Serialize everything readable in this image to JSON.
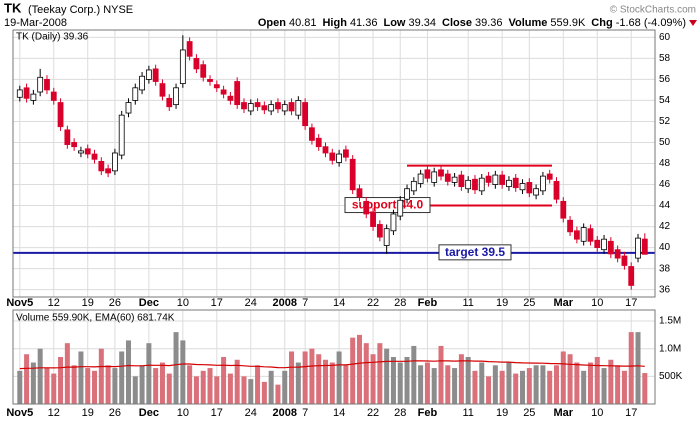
{
  "header": {
    "symbol": "TK",
    "name": "(Teekay Corp.) NYSE",
    "date": "19-Mar-2008",
    "source": "© StockCharts.com",
    "quote": [
      {
        "label": "Open",
        "value": "40.81"
      },
      {
        "label": "High",
        "value": "41.36"
      },
      {
        "label": "Low",
        "value": "39.34"
      },
      {
        "label": "Close",
        "value": "39.36"
      },
      {
        "label": "Volume",
        "value": "559.9K"
      },
      {
        "label": "Chg",
        "value": "-1.68 (-4.09%)"
      }
    ]
  },
  "chart_data": [
    {
      "type": "candlestick",
      "legend": "TK (Daily) 39.36",
      "up_color": "#ffffff",
      "down_color": "#d9002b",
      "grid": true,
      "xlim": [
        -1,
        93.5
      ],
      "ylim": [
        35.3,
        60.7
      ],
      "xticks": [
        {
          "value": 0,
          "label": "Nov5"
        },
        {
          "value": 5,
          "label": "12"
        },
        {
          "value": 10,
          "label": "19"
        },
        {
          "value": 14,
          "label": "26"
        },
        {
          "value": 19,
          "label": "Dec"
        },
        {
          "value": 24,
          "label": "10"
        },
        {
          "value": 29,
          "label": "17"
        },
        {
          "value": 34,
          "label": "24"
        },
        {
          "value": 39,
          "label": "2008"
        },
        {
          "value": 42,
          "label": "7"
        },
        {
          "value": 47,
          "label": "14"
        },
        {
          "value": 52,
          "label": "22"
        },
        {
          "value": 56,
          "label": "28"
        },
        {
          "value": 60,
          "label": "Feb"
        },
        {
          "value": 66,
          "label": "11"
        },
        {
          "value": 71,
          "label": "19"
        },
        {
          "value": 75,
          "label": "25"
        },
        {
          "value": 80,
          "label": "Mar"
        },
        {
          "value": 85,
          "label": "10"
        },
        {
          "value": 90,
          "label": "17"
        }
      ],
      "yticks": [
        36,
        38,
        40,
        42,
        44,
        46,
        48,
        50,
        52,
        54,
        56,
        58,
        60
      ],
      "open": [
        54.3,
        55.2,
        54.0,
        54.8,
        56.0,
        54.8,
        53.8,
        51.2,
        50.0,
        49.0,
        49.4,
        48.9,
        48.2,
        47.5,
        47.3,
        48.8,
        52.8,
        54.0,
        55.0,
        56.0,
        57.0,
        55.6,
        54.2,
        53.6,
        55.6,
        59.6,
        58.0,
        57.4,
        56.0,
        55.5,
        55.0,
        54.4,
        55.8,
        53.8,
        53.0,
        53.8,
        53.5,
        53.0,
        53.8,
        53.0,
        53.8,
        52.6,
        53.8,
        51.4,
        50.4,
        49.6,
        49.0,
        48.1,
        49.3,
        48.4,
        45.6,
        44.4,
        43.4,
        42.2,
        40.2,
        41.6,
        43.0,
        44.6,
        45.4,
        46.1,
        47.4,
        46.2,
        47.4,
        47.0,
        46.2,
        46.9,
        45.6,
        46.5,
        45.4,
        46.8,
        46.0,
        46.9,
        45.8,
        46.6,
        45.5,
        46.2,
        45.0,
        45.4,
        47.0,
        46.3,
        44.4,
        42.6,
        41.6,
        40.6,
        41.8,
        40.7,
        39.8,
        40.6,
        39.8,
        39.2,
        38.2,
        39.0,
        40.81
      ],
      "high": [
        55.4,
        55.6,
        55.0,
        57.0,
        56.4,
        55.2,
        54.2,
        51.6,
        50.4,
        49.6,
        49.8,
        49.3,
        48.6,
        47.9,
        49.4,
        53.0,
        54.2,
        55.6,
        56.7,
        57.3,
        57.4,
        56.0,
        54.6,
        55.6,
        60.2,
        60.0,
        58.4,
        57.8,
        56.4,
        55.9,
        55.4,
        54.8,
        56.2,
        54.2,
        54.1,
        54.2,
        53.9,
        54.0,
        54.2,
        54.0,
        54.2,
        54.4,
        54.2,
        51.8,
        50.8,
        50.0,
        49.4,
        49.3,
        49.7,
        48.8,
        46.0,
        44.8,
        43.8,
        42.6,
        42.2,
        43.6,
        44.9,
        46.0,
        46.7,
        47.4,
        47.8,
        47.6,
        47.8,
        47.4,
        47.1,
        47.3,
        46.8,
        46.9,
        47.0,
        47.2,
        47.3,
        47.3,
        46.8,
        47.0,
        46.5,
        46.6,
        46.0,
        47.2,
        47.4,
        46.7,
        44.8,
        43.0,
        42.0,
        42.3,
        42.2,
        41.1,
        41.2,
        41.0,
        40.2,
        39.6,
        38.6,
        41.3,
        41.36
      ],
      "low": [
        53.9,
        53.8,
        53.6,
        54.4,
        54.6,
        53.6,
        51.1,
        49.4,
        49.2,
        48.6,
        48.5,
        48.0,
        46.9,
        46.7,
        46.9,
        48.4,
        52.4,
        53.6,
        54.6,
        55.6,
        55.4,
        54.0,
        53.0,
        53.2,
        55.2,
        57.8,
        56.6,
        55.8,
        55.4,
        54.8,
        54.2,
        53.6,
        53.2,
        52.8,
        52.6,
        53.0,
        52.7,
        52.6,
        52.8,
        52.6,
        52.6,
        52.2,
        51.2,
        49.8,
        49.2,
        48.6,
        47.9,
        47.7,
        48.2,
        45.1,
        44.4,
        42.8,
        41.6,
        40.6,
        39.4,
        41.2,
        42.6,
        44.2,
        45.0,
        45.7,
        46.2,
        45.8,
        46.4,
        45.9,
        45.8,
        45.4,
        45.2,
        45.1,
        45.0,
        45.8,
        45.6,
        45.6,
        45.4,
        45.3,
        45.1,
        44.8,
        44.6,
        45.0,
        46.1,
        44.2,
        42.4,
        41.1,
        40.4,
        40.2,
        40.2,
        39.6,
        39.4,
        39.0,
        38.6,
        37.9,
        36.0,
        38.6,
        39.34
      ],
      "close": [
        55.0,
        54.2,
        54.6,
        56.2,
        55.0,
        54.0,
        51.5,
        49.8,
        49.6,
        49.2,
        48.9,
        48.4,
        47.3,
        47.1,
        49.0,
        52.6,
        53.8,
        55.2,
        56.3,
        56.9,
        55.8,
        54.4,
        53.4,
        55.2,
        58.8,
        58.2,
        57.0,
        56.2,
        55.8,
        55.2,
        54.6,
        54.0,
        53.6,
        53.2,
        53.7,
        53.4,
        53.1,
        53.6,
        53.2,
        53.6,
        53.0,
        54.0,
        51.6,
        50.2,
        49.6,
        49.0,
        48.3,
        48.9,
        48.6,
        45.5,
        44.8,
        43.2,
        42.0,
        41.0,
        41.8,
        43.2,
        44.5,
        45.6,
        46.3,
        47.0,
        46.6,
        47.2,
        46.8,
        46.3,
        46.7,
        45.8,
        46.4,
        45.5,
        46.6,
        46.2,
        46.9,
        46.0,
        46.4,
        45.7,
        46.1,
        45.2,
        45.6,
        46.8,
        46.5,
        44.6,
        42.8,
        41.5,
        40.8,
        41.9,
        40.6,
        40.0,
        40.8,
        39.4,
        39.0,
        38.3,
        36.4,
        40.9,
        39.36
      ],
      "lines": [
        {
          "value": 47.8,
          "color": "#e0001b"
        },
        {
          "value": 44.0,
          "color": "#e0001b",
          "label": "support 44.0"
        },
        {
          "value": 39.5,
          "color": "#1a1aa6",
          "label": "target 39.5"
        }
      ]
    },
    {
      "type": "volume",
      "legend": "Volume 559.90K, EMA(60) 681.74K",
      "up_color": "#8c8c8c",
      "down_color": "#d9707a",
      "ema_color": "#d40000",
      "grid": true,
      "xlim": [
        -1,
        93.5
      ],
      "ylim": [
        0,
        1700000
      ],
      "yticks": [
        {
          "value": 500000,
          "label": "500K"
        },
        {
          "value": 1000000,
          "label": "1.0M"
        },
        {
          "value": 1500000,
          "label": "1.5M"
        }
      ],
      "values": [
        600000,
        900000,
        750000,
        1000000,
        650000,
        550000,
        850000,
        1100000,
        700000,
        950000,
        650000,
        600000,
        1000000,
        700000,
        650000,
        950000,
        1150000,
        500000,
        700000,
        1100000,
        650000,
        750000,
        550000,
        1300000,
        1150000,
        700000,
        500000,
        600000,
        650000,
        500000,
        850000,
        550000,
        800000,
        500000,
        450000,
        700000,
        400000,
        600000,
        350000,
        600000,
        950000,
        750000,
        950000,
        1000000,
        900000,
        800000,
        750000,
        950000,
        700000,
        1200000,
        1250000,
        1100000,
        900000,
        1100000,
        1000000,
        850000,
        750000,
        850000,
        1050000,
        700000,
        750000,
        650000,
        1050000,
        700000,
        650000,
        900000,
        850000,
        600000,
        750000,
        500000,
        700000,
        600000,
        750000,
        550000,
        600000,
        650000,
        700000,
        700000,
        600000,
        700000,
        950000,
        900000,
        750000,
        600000,
        750000,
        850000,
        650000,
        800000,
        700000,
        600000,
        1300000,
        1300000,
        559900
      ],
      "ema": [
        640000,
        645000,
        648000,
        655000,
        655000,
        652000,
        656000,
        668000,
        668000,
        675000,
        674000,
        671000,
        679000,
        679000,
        677000,
        684000,
        696000,
        690000,
        690000,
        701000,
        699000,
        700000,
        694000,
        711000,
        724000,
        724000,
        715000,
        711000,
        707000,
        699000,
        702000,
        697000,
        699000,
        691000,
        682000,
        682000,
        672000,
        670000,
        659000,
        657000,
        666000,
        668000,
        677000,
        687000,
        693000,
        697000,
        699000,
        707000,
        707000,
        722000,
        738000,
        749000,
        754000,
        764000,
        771000,
        773000,
        772000,
        773000,
        781000,
        779000,
        778000,
        774000,
        782000,
        780000,
        775000,
        779000,
        781000,
        776000,
        776000,
        766000,
        763000,
        757000,
        757000,
        749000,
        744000,
        741000,
        739000,
        738000,
        733000,
        731000,
        725000,
        718000,
        712000,
        705000,
        700000,
        697000,
        692000,
        690000,
        688000,
        685000,
        686000,
        690000,
        681740
      ]
    }
  ]
}
